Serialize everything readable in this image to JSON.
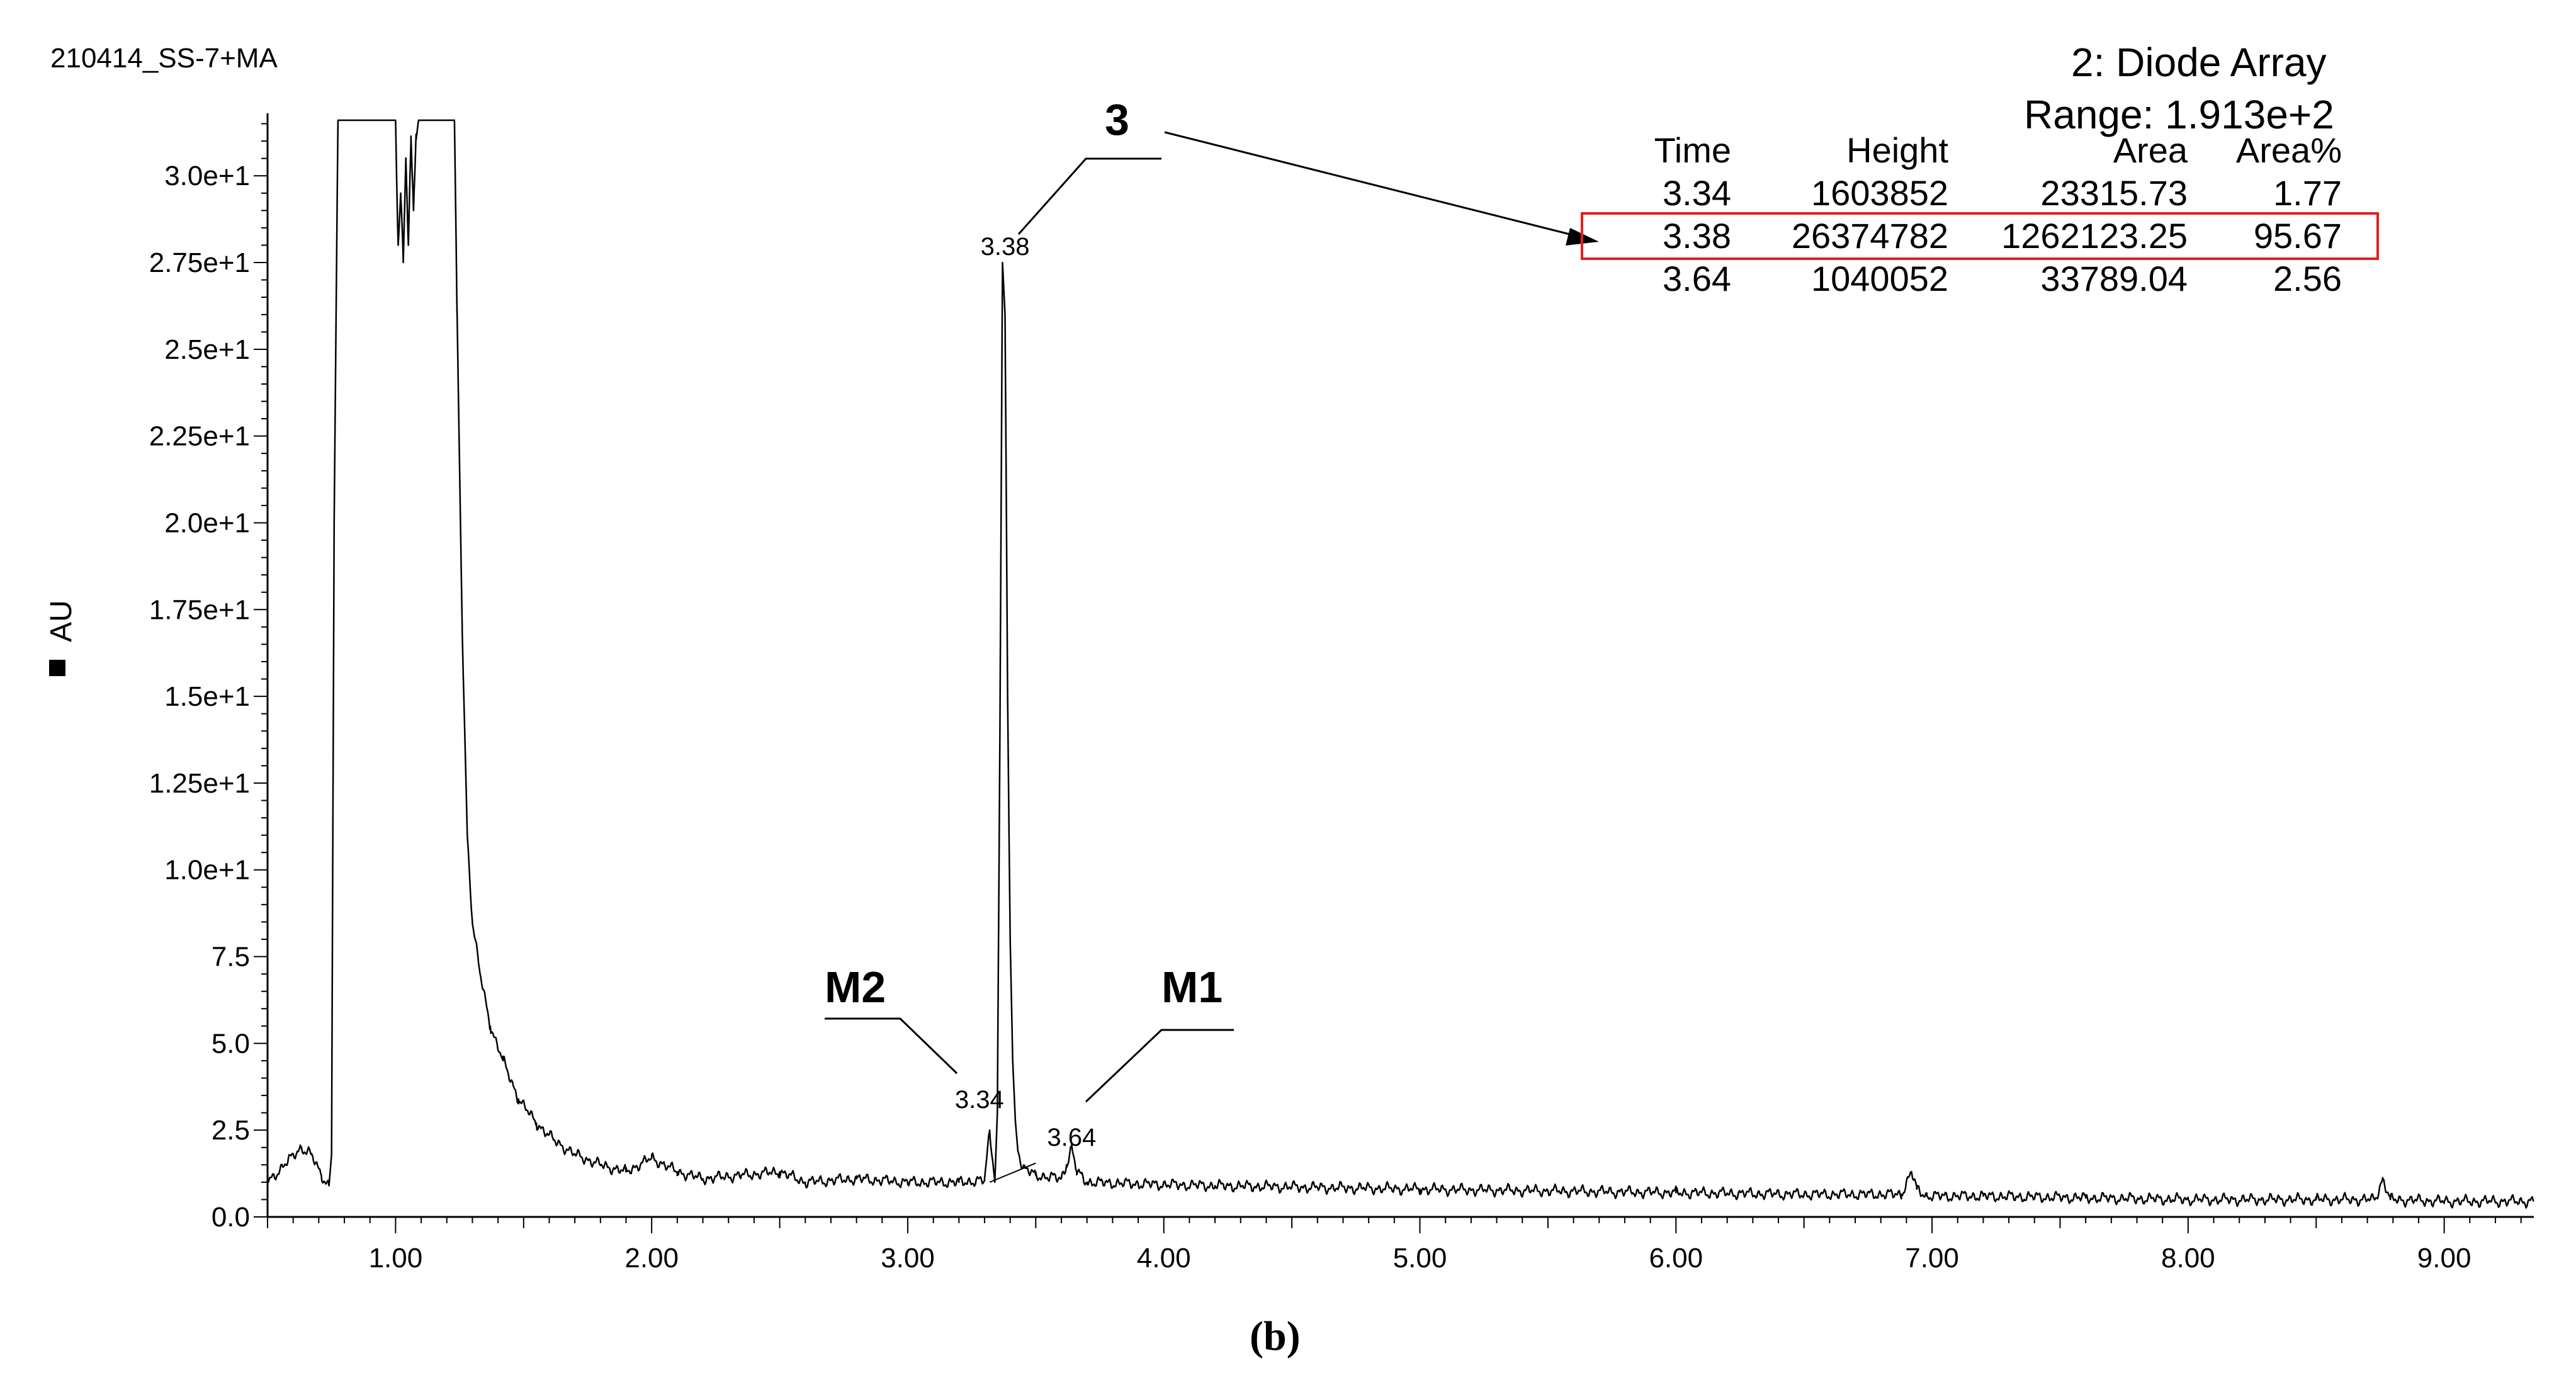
{
  "sample_name": "210414_SS-7+MA",
  "panel_label": "(b)",
  "callouts": {
    "main": "3",
    "m2": "M2",
    "m1": "M1"
  },
  "colors": {
    "trace": "#000000",
    "highlight_box": "#e02020"
  },
  "chart_data": {
    "type": "line",
    "title": "2: Diode Array",
    "range_label": "Range: 1.913e+2",
    "ylabel": "AU",
    "xlabel": "",
    "xlim": [
      0.5,
      9.35
    ],
    "ylim": [
      0,
      31.8
    ],
    "x_ticks": [
      1.0,
      2.0,
      3.0,
      4.0,
      5.0,
      6.0,
      7.0,
      8.0,
      9.0
    ],
    "x_tick_labels": [
      "1.00",
      "2.00",
      "3.00",
      "4.00",
      "5.00",
      "6.00",
      "7.00",
      "8.00",
      "9.00"
    ],
    "y_ticks": [
      0,
      2.5,
      5.0,
      7.5,
      10.0,
      12.5,
      15.0,
      17.5,
      20.0,
      22.5,
      25.0,
      27.5,
      30.0
    ],
    "y_tick_labels": [
      "0.0",
      "2.5",
      "5.0",
      "7.5",
      "1.0e+1",
      "1.25e+1",
      "1.5e+1",
      "1.75e+1",
      "2.0e+1",
      "2.25e+1",
      "2.5e+1",
      "2.75e+1",
      "3.0e+1"
    ],
    "grid": false,
    "series": [
      {
        "x": [
          0.5,
          0.58,
          0.63,
          0.67,
          0.71,
          0.74,
          0.75,
          0.76,
          0.775,
          0.78,
          1.0,
          1.01,
          1.02,
          1.03,
          1.04,
          1.05,
          1.06,
          1.07,
          1.08,
          1.09,
          1.1,
          1.23,
          1.24,
          1.26,
          1.28,
          1.3,
          1.33,
          1.37,
          1.42,
          1.48,
          1.55,
          1.62,
          1.7,
          1.8,
          1.9,
          2.0,
          2.05,
          2.1,
          2.2,
          2.35,
          2.5,
          2.6,
          2.8,
          3.0,
          3.2,
          3.3,
          3.32,
          3.34,
          3.35,
          3.36,
          3.37,
          3.38,
          3.39,
          3.4,
          3.41,
          3.42,
          3.43,
          3.45,
          3.5,
          3.6,
          3.62,
          3.64,
          3.66,
          3.7,
          3.9,
          4.2,
          4.6,
          5.0,
          5.5,
          6.0,
          6.5,
          6.88,
          6.92,
          6.94,
          6.98,
          7.2,
          7.6,
          8.0,
          8.5,
          8.73,
          8.76,
          8.79,
          9.0,
          9.35
        ],
        "y": [
          1.0,
          1.6,
          2.0,
          1.8,
          1.2,
          0.9,
          1.8,
          20.0,
          31.6,
          31.6,
          31.6,
          28.0,
          29.5,
          27.5,
          30.5,
          28.0,
          31.0,
          29.0,
          31.2,
          31.6,
          31.6,
          31.6,
          26.0,
          17.0,
          11.0,
          8.5,
          7.0,
          5.5,
          4.5,
          3.4,
          2.7,
          2.2,
          1.8,
          1.5,
          1.3,
          1.7,
          1.5,
          1.3,
          1.1,
          1.2,
          1.3,
          1.0,
          1.1,
          1.0,
          1.0,
          1.05,
          2.5,
          1.0,
          3.0,
          14.0,
          27.5,
          26.0,
          15.0,
          8.0,
          4.5,
          2.8,
          1.9,
          1.4,
          1.2,
          1.1,
          1.5,
          2.0,
          1.3,
          1.0,
          0.95,
          0.9,
          0.85,
          0.8,
          0.75,
          0.7,
          0.65,
          0.65,
          1.3,
          0.8,
          0.6,
          0.6,
          0.55,
          0.5,
          0.5,
          0.5,
          1.1,
          0.5,
          0.45,
          0.45
        ]
      }
    ],
    "peak_labels": [
      {
        "x": 3.34,
        "label": "3.34"
      },
      {
        "x": 3.38,
        "label": "3.38"
      },
      {
        "x": 3.64,
        "label": "3.64"
      }
    ],
    "peak_table": {
      "headers": [
        "Time",
        "Height",
        "Area",
        "Area%"
      ],
      "rows": [
        [
          "3.34",
          "1603852",
          "23315.73",
          "1.77"
        ],
        [
          "3.38",
          "26374782",
          "1262123.25",
          "95.67"
        ],
        [
          "3.64",
          "1040052",
          "33789.04",
          "2.56"
        ]
      ],
      "highlighted_row": 1
    }
  }
}
